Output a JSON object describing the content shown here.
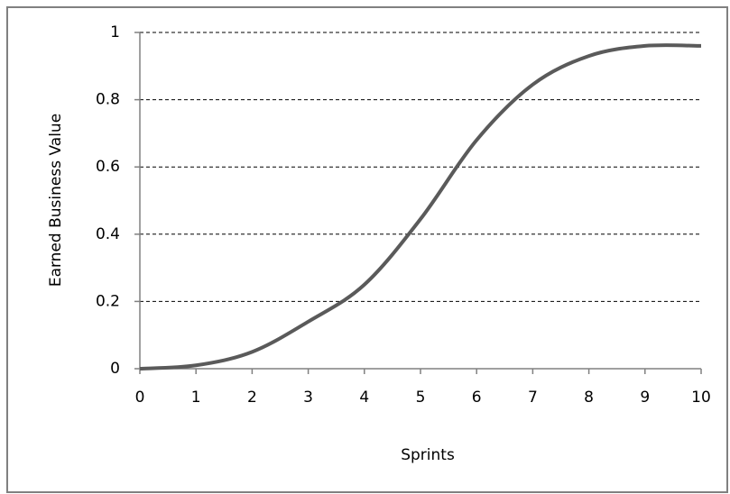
{
  "chart_data": {
    "type": "line",
    "x_label": "Sprints",
    "y_label": "Earned Business Value",
    "x": [
      0,
      1,
      2,
      3,
      4,
      5,
      6,
      7,
      8,
      9,
      10
    ],
    "series": [
      {
        "name": "Earned Business Value",
        "color": "#5a5a5a",
        "values": [
          0,
          0.01,
          0.05,
          0.14,
          0.25,
          0.445,
          0.68,
          0.845,
          0.93,
          0.96,
          0.96
        ]
      }
    ],
    "xlim": [
      0,
      10
    ],
    "xticks": [
      0,
      1,
      2,
      3,
      4,
      5,
      6,
      7,
      8,
      9,
      10
    ],
    "ylim": [
      0,
      1
    ],
    "yticks": [
      0,
      0.2,
      0.4,
      0.6,
      0.8,
      1
    ],
    "grid": true
  }
}
